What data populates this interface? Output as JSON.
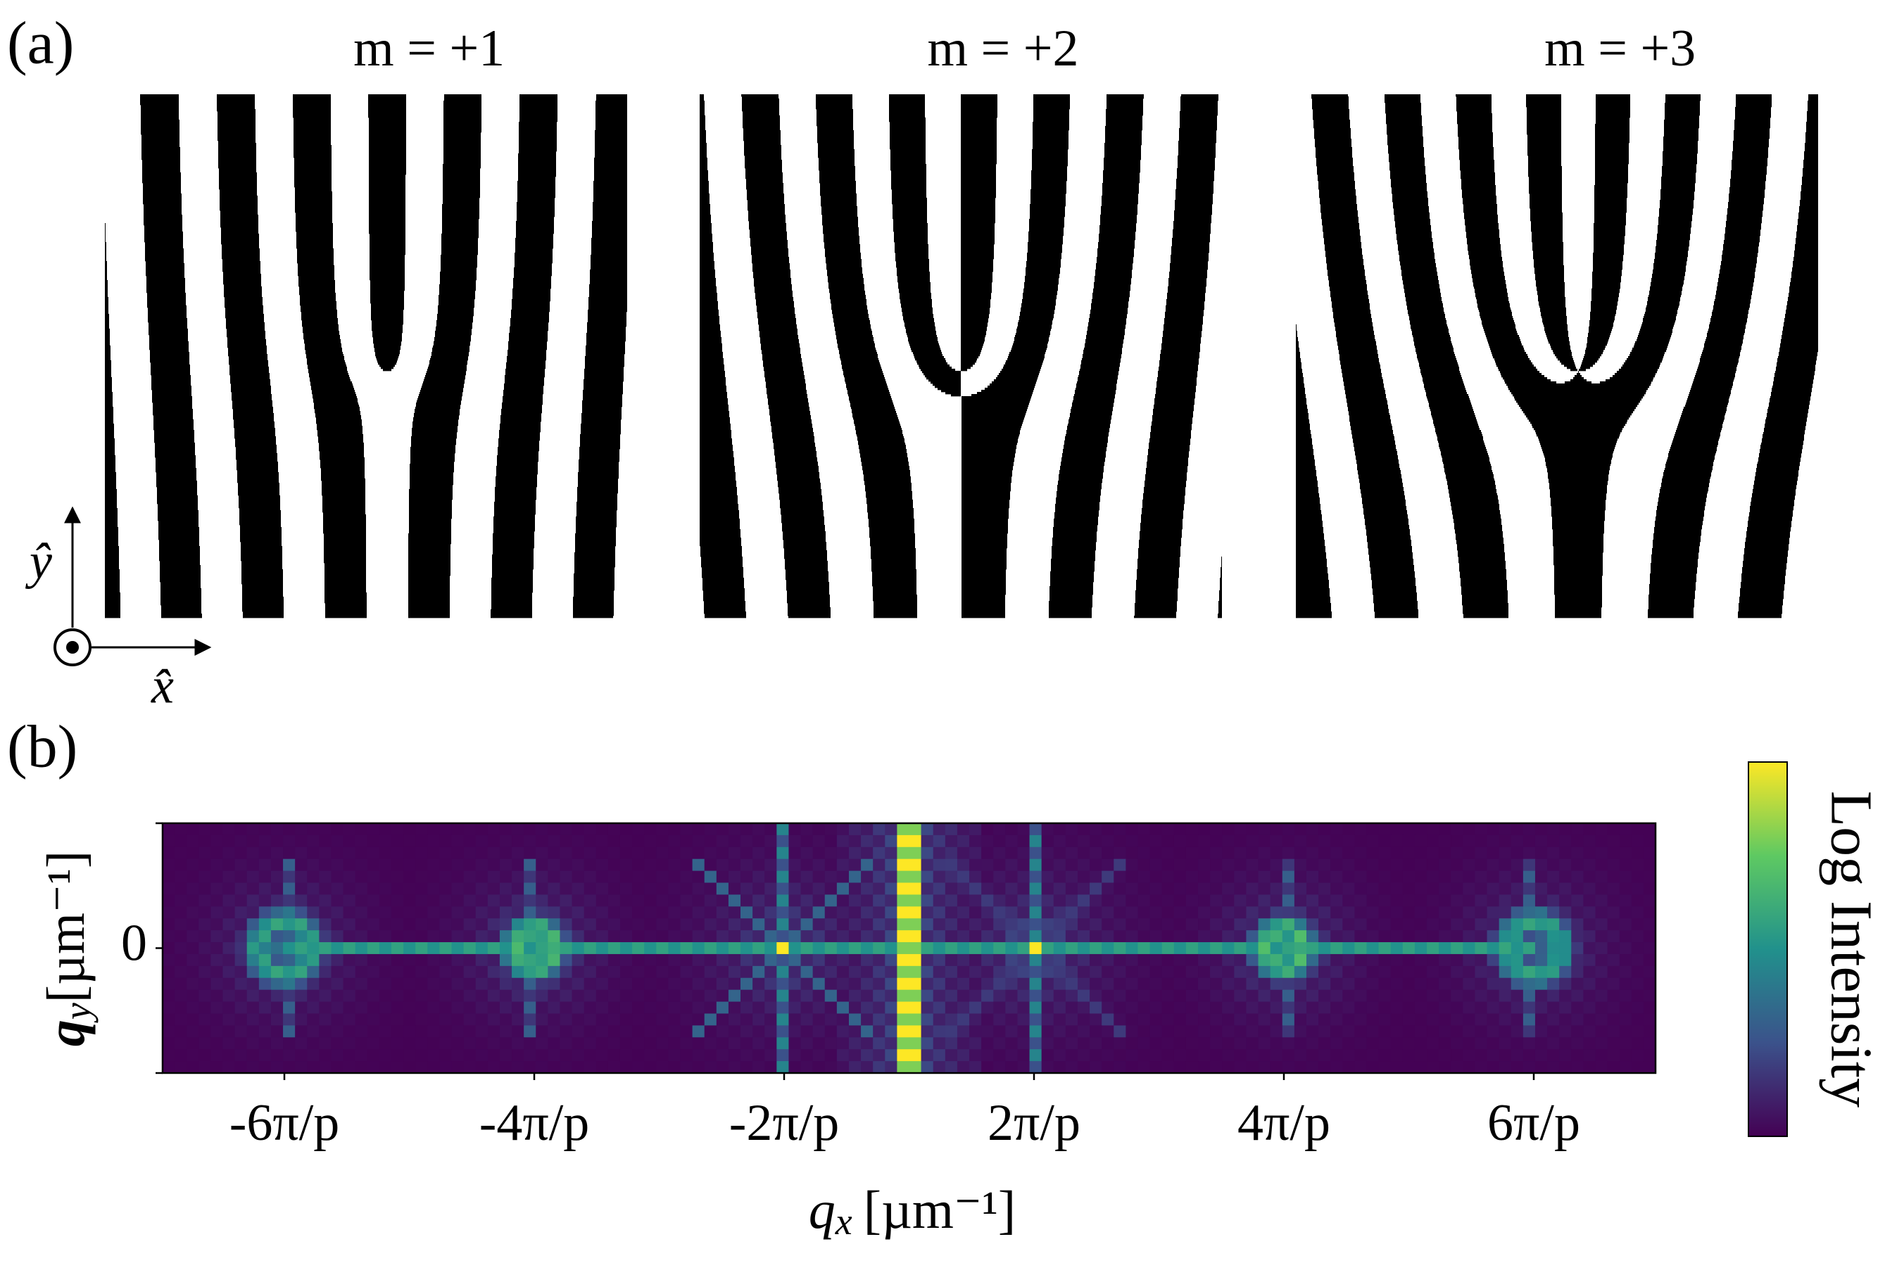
{
  "panel_a": {
    "label": "(a)",
    "gratings": [
      {
        "title": "m = +1",
        "m": 1
      },
      {
        "title": "m = +2",
        "m": 2
      },
      {
        "title": "m = +3",
        "m": 3
      }
    ],
    "axes": {
      "y": "ŷ",
      "x": "x̂"
    }
  },
  "panel_b": {
    "label": "(b)",
    "xticks": [
      "-6π/p",
      "-4π/p",
      "-2π/p",
      "2π/p",
      "4π/p",
      "6π/p"
    ],
    "yticks": [
      0
    ],
    "xlabel": {
      "symbol": "q",
      "subscript": "x",
      "unit": "[µm⁻¹]"
    },
    "ylabel": {
      "symbol": "q",
      "subscript": "y",
      "unit": "[µm⁻¹]"
    },
    "colorbar_label": "Log Intensity"
  }
}
